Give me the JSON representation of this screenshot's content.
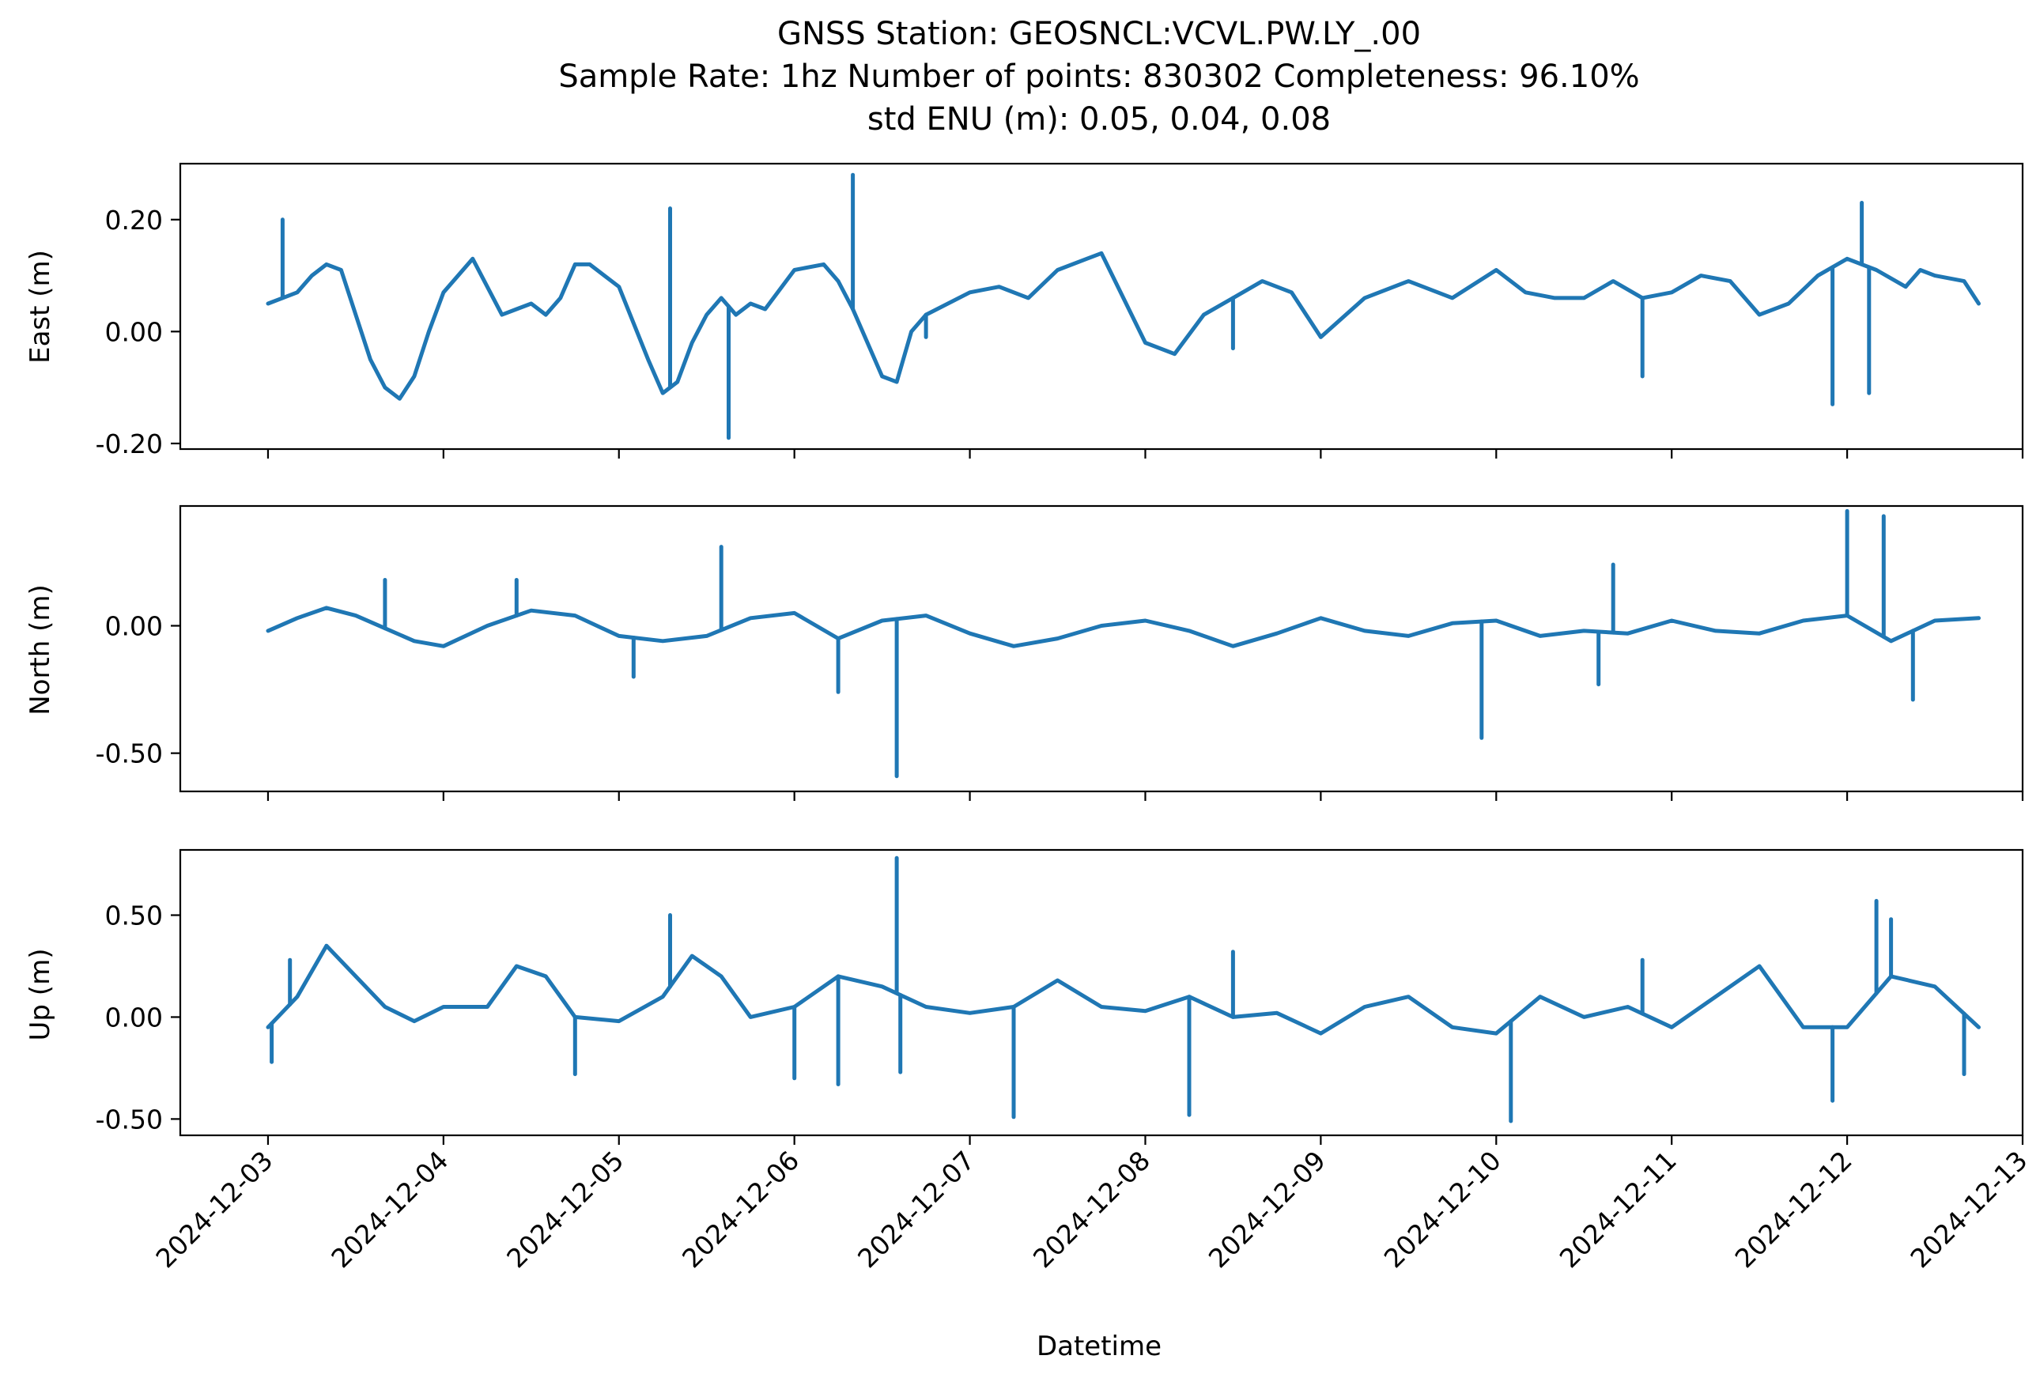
{
  "chart_data": {
    "type": "line",
    "title": "GNSS Station: GEOSNCL:VCVL.PW.LY_.00",
    "subtitle_lines": [
      "Sample Rate: 1hz   Number of points: 830302    Completeness:  96.10%",
      "std ENU (m):  0.05, 0.04, 0.08"
    ],
    "xlabel": "Datetime",
    "x_ticks": [
      "2024-12-03",
      "2024-12-04",
      "2024-12-05",
      "2024-12-06",
      "2024-12-07",
      "2024-12-08",
      "2024-12-09",
      "2024-12-10",
      "2024-12-11",
      "2024-12-12",
      "2024-12-13"
    ],
    "xlim": [
      "2024-12-02T12:00",
      "2024-12-13T00:00"
    ],
    "line_color": "#1f77b4",
    "panels": [
      {
        "ylabel": "East (m)",
        "ylim": [
          -0.21,
          0.3
        ],
        "y_ticks": [
          0.2,
          0.0,
          -0.2
        ],
        "y_tick_labels": [
          "0.20",
          "0.00",
          "-0.20"
        ],
        "x_tick_labels_visible": false,
        "series": [
          {
            "x": [
              "2024-12-03T00:00",
              "2024-12-03T02:00",
              "2024-12-03T04:00",
              "2024-12-03T06:00",
              "2024-12-03T08:00",
              "2024-12-03T10:00",
              "2024-12-03T12:00",
              "2024-12-03T14:00",
              "2024-12-03T16:00",
              "2024-12-03T18:00",
              "2024-12-03T20:00",
              "2024-12-03T22:00",
              "2024-12-04T00:00",
              "2024-12-04T04:00",
              "2024-12-04T08:00",
              "2024-12-04T10:00",
              "2024-12-04T12:00",
              "2024-12-04T14:00",
              "2024-12-04T16:00",
              "2024-12-04T18:00",
              "2024-12-04T20:00",
              "2024-12-05T00:00",
              "2024-12-05T04:00",
              "2024-12-05T06:00",
              "2024-12-05T08:00",
              "2024-12-05T10:00",
              "2024-12-05T12:00",
              "2024-12-05T14:00",
              "2024-12-05T16:00",
              "2024-12-05T18:00",
              "2024-12-05T20:00",
              "2024-12-06T00:00",
              "2024-12-06T04:00",
              "2024-12-06T06:00",
              "2024-12-06T08:00",
              "2024-12-06T10:00",
              "2024-12-06T12:00",
              "2024-12-06T14:00",
              "2024-12-06T16:00",
              "2024-12-06T18:00",
              "2024-12-07T00:00",
              "2024-12-07T04:00",
              "2024-12-07T08:00",
              "2024-12-07T12:00",
              "2024-12-07T16:00",
              "2024-12-07T18:00",
              "2024-12-08T00:00",
              "2024-12-08T04:00",
              "2024-12-08T08:00",
              "2024-12-08T12:00",
              "2024-12-08T16:00",
              "2024-12-08T20:00",
              "2024-12-09T00:00",
              "2024-12-09T06:00",
              "2024-12-09T12:00",
              "2024-12-09T18:00",
              "2024-12-10T00:00",
              "2024-12-10T04:00",
              "2024-12-10T08:00",
              "2024-12-10T12:00",
              "2024-12-10T16:00",
              "2024-12-10T20:00",
              "2024-12-11T00:00",
              "2024-12-11T04:00",
              "2024-12-11T08:00",
              "2024-12-11T12:00",
              "2024-12-11T16:00",
              "2024-12-11T20:00",
              "2024-12-12T00:00",
              "2024-12-12T04:00",
              "2024-12-12T08:00",
              "2024-12-12T10:00",
              "2024-12-12T12:00",
              "2024-12-12T16:00",
              "2024-12-12T18:00"
            ],
            "y": [
              0.05,
              0.06,
              0.07,
              0.1,
              0.12,
              0.11,
              0.03,
              -0.05,
              -0.1,
              -0.12,
              -0.08,
              0.0,
              0.07,
              0.13,
              0.03,
              0.04,
              0.05,
              0.03,
              0.06,
              0.12,
              0.12,
              0.08,
              -0.05,
              -0.11,
              -0.09,
              -0.02,
              0.03,
              0.06,
              0.03,
              0.05,
              0.04,
              0.11,
              0.12,
              0.09,
              0.04,
              -0.02,
              -0.08,
              -0.09,
              0.0,
              0.03,
              0.07,
              0.08,
              0.06,
              0.11,
              0.13,
              0.14,
              -0.02,
              -0.04,
              0.03,
              0.06,
              0.09,
              0.07,
              -0.01,
              0.06,
              0.09,
              0.06,
              0.11,
              0.07,
              0.06,
              0.06,
              0.09,
              0.06,
              0.07,
              0.1,
              0.09,
              0.03,
              0.05,
              0.1,
              0.13,
              0.11,
              0.08,
              0.11,
              0.1,
              0.09,
              0.05
            ],
            "spikes": [
              {
                "x": "2024-12-03T02:00",
                "y": 0.2
              },
              {
                "x": "2024-12-05T07:00",
                "y": 0.22
              },
              {
                "x": "2024-12-05T15:00",
                "y": -0.19
              },
              {
                "x": "2024-12-06T08:00",
                "y": 0.28
              },
              {
                "x": "2024-12-06T18:00",
                "y": -0.01
              },
              {
                "x": "2024-12-08T12:00",
                "y": -0.03
              },
              {
                "x": "2024-12-10T20:00",
                "y": -0.08
              },
              {
                "x": "2024-12-11T22:00",
                "y": -0.13
              },
              {
                "x": "2024-12-12T03:00",
                "y": -0.11
              },
              {
                "x": "2024-12-12T02:00",
                "y": 0.23
              }
            ]
          }
        ]
      },
      {
        "ylabel": "North (m)",
        "ylim": [
          -0.65,
          0.47
        ],
        "y_ticks": [
          0.0,
          -0.5
        ],
        "y_tick_labels": [
          "0.00",
          "-0.50"
        ],
        "x_tick_labels_visible": false,
        "series": [
          {
            "x": [
              "2024-12-03T00:00",
              "2024-12-03T04:00",
              "2024-12-03T08:00",
              "2024-12-03T12:00",
              "2024-12-03T16:00",
              "2024-12-03T20:00",
              "2024-12-04T00:00",
              "2024-12-04T06:00",
              "2024-12-04T12:00",
              "2024-12-04T18:00",
              "2024-12-05T00:00",
              "2024-12-05T06:00",
              "2024-12-05T12:00",
              "2024-12-05T18:00",
              "2024-12-06T00:00",
              "2024-12-06T06:00",
              "2024-12-06T12:00",
              "2024-12-06T18:00",
              "2024-12-07T00:00",
              "2024-12-07T06:00",
              "2024-12-07T12:00",
              "2024-12-07T18:00",
              "2024-12-08T00:00",
              "2024-12-08T06:00",
              "2024-12-08T12:00",
              "2024-12-08T18:00",
              "2024-12-09T00:00",
              "2024-12-09T06:00",
              "2024-12-09T12:00",
              "2024-12-09T18:00",
              "2024-12-10T00:00",
              "2024-12-10T06:00",
              "2024-12-10T12:00",
              "2024-12-10T18:00",
              "2024-12-11T00:00",
              "2024-12-11T06:00",
              "2024-12-11T12:00",
              "2024-12-11T18:00",
              "2024-12-12T00:00",
              "2024-12-12T06:00",
              "2024-12-12T12:00",
              "2024-12-12T18:00"
            ],
            "y": [
              -0.02,
              0.03,
              0.07,
              0.04,
              -0.01,
              -0.06,
              -0.08,
              0.0,
              0.06,
              0.04,
              -0.04,
              -0.06,
              -0.04,
              0.03,
              0.05,
              -0.05,
              0.02,
              0.04,
              -0.03,
              -0.08,
              -0.05,
              0.0,
              0.02,
              -0.02,
              -0.08,
              -0.03,
              0.03,
              -0.02,
              -0.04,
              0.01,
              0.02,
              -0.04,
              -0.02,
              -0.03,
              0.02,
              -0.02,
              -0.03,
              0.02,
              0.04,
              -0.06,
              0.02,
              0.03
            ],
            "spikes": [
              {
                "x": "2024-12-03T16:00",
                "y": 0.18
              },
              {
                "x": "2024-12-04T10:00",
                "y": 0.18
              },
              {
                "x": "2024-12-05T14:00",
                "y": 0.31
              },
              {
                "x": "2024-12-05T02:00",
                "y": -0.2
              },
              {
                "x": "2024-12-06T06:00",
                "y": -0.26
              },
              {
                "x": "2024-12-06T14:00",
                "y": -0.59
              },
              {
                "x": "2024-12-09T22:00",
                "y": -0.44
              },
              {
                "x": "2024-12-10T16:00",
                "y": 0.24
              },
              {
                "x": "2024-12-10T14:00",
                "y": -0.23
              },
              {
                "x": "2024-12-12T00:00",
                "y": 0.45
              },
              {
                "x": "2024-12-12T05:00",
                "y": 0.43
              },
              {
                "x": "2024-12-12T09:00",
                "y": -0.29
              }
            ]
          }
        ]
      },
      {
        "ylabel": "Up (m)",
        "ylim": [
          -0.58,
          0.82
        ],
        "y_ticks": [
          0.5,
          0.0,
          -0.5
        ],
        "y_tick_labels": [
          "0.50",
          "0.00",
          "-0.50"
        ],
        "x_tick_labels_visible": true,
        "series": [
          {
            "x": [
              "2024-12-03T00:00",
              "2024-12-03T04:00",
              "2024-12-03T08:00",
              "2024-12-03T12:00",
              "2024-12-03T16:00",
              "2024-12-03T20:00",
              "2024-12-04T00:00",
              "2024-12-04T06:00",
              "2024-12-04T10:00",
              "2024-12-04T14:00",
              "2024-12-04T18:00",
              "2024-12-05T00:00",
              "2024-12-05T06:00",
              "2024-12-05T10:00",
              "2024-12-05T14:00",
              "2024-12-05T18:00",
              "2024-12-06T00:00",
              "2024-12-06T06:00",
              "2024-12-06T12:00",
              "2024-12-06T18:00",
              "2024-12-07T00:00",
              "2024-12-07T06:00",
              "2024-12-07T12:00",
              "2024-12-07T18:00",
              "2024-12-08T00:00",
              "2024-12-08T06:00",
              "2024-12-08T12:00",
              "2024-12-08T18:00",
              "2024-12-09T00:00",
              "2024-12-09T06:00",
              "2024-12-09T12:00",
              "2024-12-09T18:00",
              "2024-12-10T00:00",
              "2024-12-10T06:00",
              "2024-12-10T12:00",
              "2024-12-10T18:00",
              "2024-12-11T00:00",
              "2024-12-11T06:00",
              "2024-12-11T12:00",
              "2024-12-11T18:00",
              "2024-12-12T00:00",
              "2024-12-12T06:00",
              "2024-12-12T12:00",
              "2024-12-12T18:00"
            ],
            "y": [
              -0.05,
              0.1,
              0.35,
              0.2,
              0.05,
              -0.02,
              0.05,
              0.05,
              0.25,
              0.2,
              0.0,
              -0.02,
              0.1,
              0.3,
              0.2,
              0.0,
              0.05,
              0.2,
              0.15,
              0.05,
              0.02,
              0.05,
              0.18,
              0.05,
              0.03,
              0.1,
              0.0,
              0.02,
              -0.08,
              0.05,
              0.1,
              -0.05,
              -0.08,
              0.1,
              0.0,
              0.05,
              -0.05,
              0.1,
              0.25,
              -0.05,
              -0.05,
              0.2,
              0.15,
              -0.05
            ],
            "spikes": [
              {
                "x": "2024-12-03T03:00",
                "y": 0.28
              },
              {
                "x": "2024-12-03T00:30",
                "y": -0.22
              },
              {
                "x": "2024-12-05T07:00",
                "y": 0.5
              },
              {
                "x": "2024-12-04T18:00",
                "y": -0.28
              },
              {
                "x": "2024-12-06T00:00",
                "y": -0.3
              },
              {
                "x": "2024-12-06T06:00",
                "y": -0.33
              },
              {
                "x": "2024-12-06T14:00",
                "y": 0.78
              },
              {
                "x": "2024-12-06T14:30",
                "y": -0.27
              },
              {
                "x": "2024-12-07T06:00",
                "y": -0.49
              },
              {
                "x": "2024-12-08T06:00",
                "y": -0.48
              },
              {
                "x": "2024-12-08T12:00",
                "y": 0.32
              },
              {
                "x": "2024-12-10T02:00",
                "y": -0.51
              },
              {
                "x": "2024-12-10T20:00",
                "y": 0.28
              },
              {
                "x": "2024-12-11T22:00",
                "y": -0.41
              },
              {
                "x": "2024-12-12T04:00",
                "y": 0.57
              },
              {
                "x": "2024-12-12T06:00",
                "y": 0.48
              },
              {
                "x": "2024-12-12T16:00",
                "y": -0.28
              }
            ]
          }
        ]
      }
    ]
  }
}
